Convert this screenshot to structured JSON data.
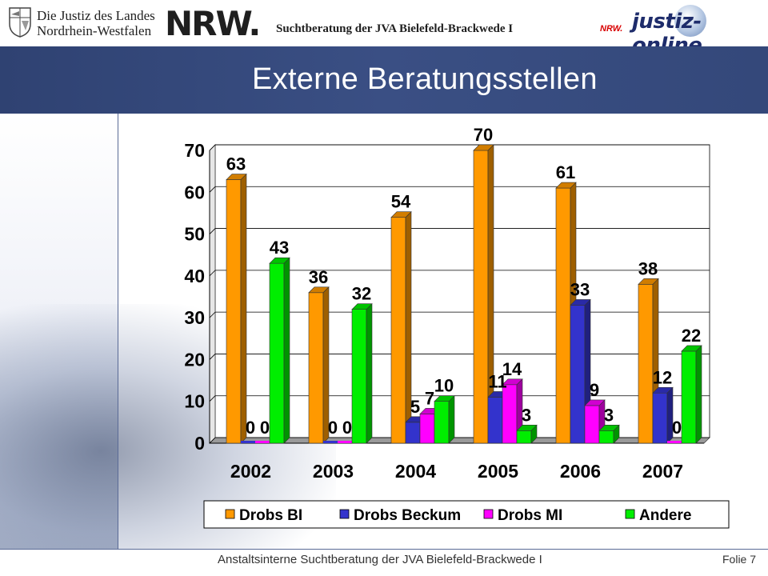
{
  "header": {
    "justiz_line1": "Die Justiz des Landes",
    "justiz_line2": "Nordrhein-Westfalen",
    "nrw_logo": "NRW.",
    "center_text": "Suchtberatung der  JVA Bielefeld-Brackwede I",
    "jo_small": "NRW.",
    "jo_logo": "justiz-online"
  },
  "slide": {
    "title": "Externe Beratungsstellen"
  },
  "footer": {
    "text": "Anstaltsinterne Suchtberatung der JVA Bielefeld-Brackwede I",
    "folie": "Folie 7"
  },
  "colors": {
    "title_band": "#34487a",
    "drobs_bi": "#ff9900",
    "drobs_beckum": "#3333cc",
    "drobs_mi": "#ff00ff",
    "andere": "#00ee00"
  },
  "chart_data": {
    "type": "bar",
    "categories": [
      "2002",
      "2003",
      "2004",
      "2005",
      "2006",
      "2007"
    ],
    "series": [
      {
        "name": "Drobs BI",
        "color": "#ff9900",
        "values": [
          63,
          36,
          54,
          70,
          61,
          38
        ]
      },
      {
        "name": "Drobs Beckum",
        "color": "#3333cc",
        "values": [
          0,
          0,
          5,
          11,
          33,
          12
        ]
      },
      {
        "name": "Drobs MI",
        "color": "#ff00ff",
        "values": [
          0,
          0,
          7,
          14,
          9,
          0
        ]
      },
      {
        "name": "Andere",
        "color": "#00ee00",
        "values": [
          43,
          32,
          10,
          3,
          3,
          22
        ]
      }
    ],
    "yticks": [
      0,
      10,
      20,
      30,
      40,
      50,
      60,
      70
    ],
    "ylim": [
      0,
      70
    ],
    "grid": true,
    "legend_position": "bottom",
    "style": "3d-clustered"
  }
}
